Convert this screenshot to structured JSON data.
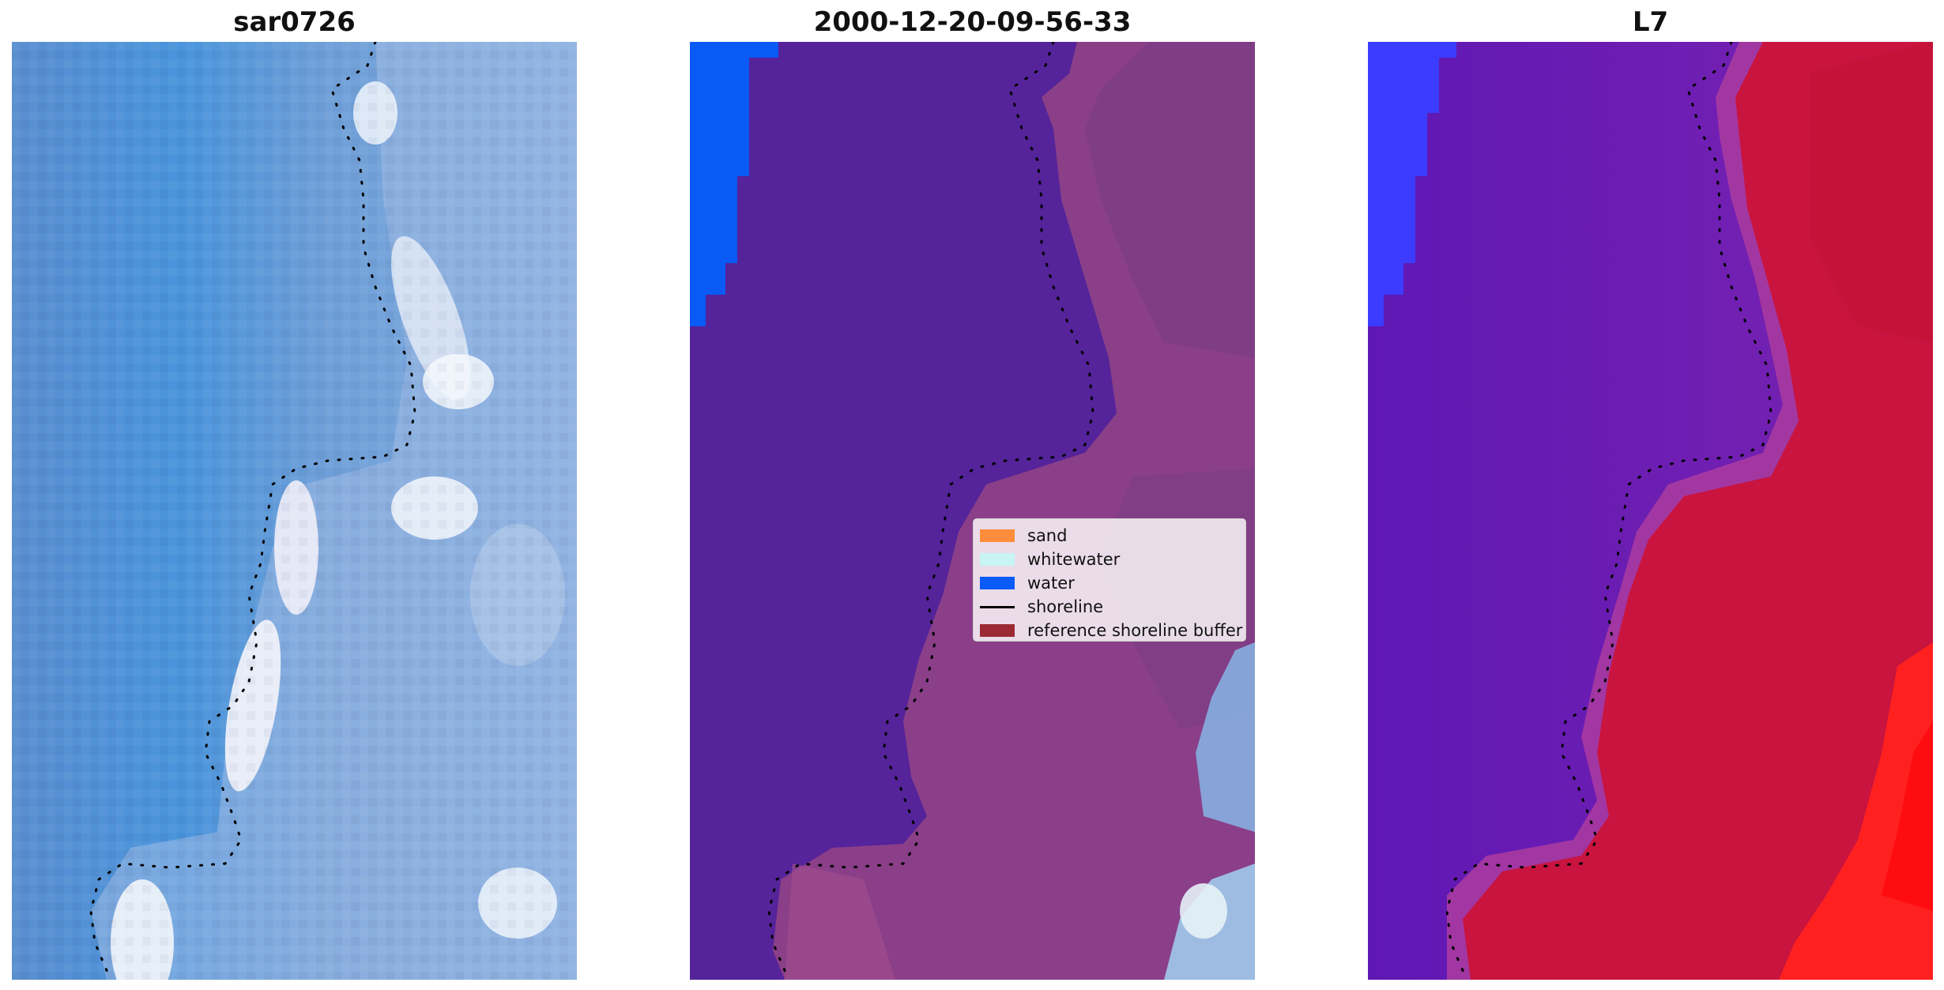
{
  "panels": [
    {
      "title": "sar0726"
    },
    {
      "title": "2000-12-20-09-56-33"
    },
    {
      "title": "L7"
    }
  ],
  "legend": {
    "items": [
      {
        "label": "sand",
        "color": "#ff8c3a",
        "kind": "patch"
      },
      {
        "label": "whitewater",
        "color": "#c8f4f4",
        "kind": "patch"
      },
      {
        "label": "water",
        "color": "#0a5af5",
        "kind": "patch"
      },
      {
        "label": "shoreline",
        "color": "#000000",
        "kind": "line"
      },
      {
        "label": "reference shoreline buffer",
        "color": "#9b2a35",
        "kind": "patch"
      }
    ]
  },
  "colors": {
    "rgb_water": "#4f8fd6",
    "rgb_land": "#8fb0e0",
    "class_water_dark": "#55239a",
    "class_land_pink": "#8a3f88",
    "class_water_blue": "#0a5af5",
    "ndwi_water": "#6a1cb8",
    "ndwi_land": "#c8143e",
    "ndwi_blue": "#3c3cff",
    "ndwi_red": "#ff2020"
  }
}
